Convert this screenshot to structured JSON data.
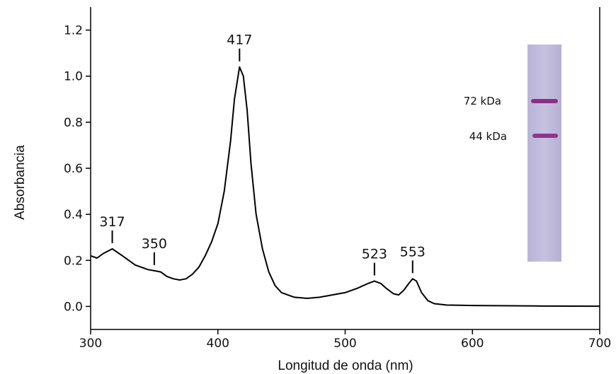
{
  "chart_data": {
    "type": "line",
    "xlabel": "Longitud de onda (nm)",
    "ylabel": "Absorbancia",
    "xlim": [
      300,
      700
    ],
    "ylim": [
      -0.1,
      1.3
    ],
    "xticks": [
      300,
      400,
      500,
      600,
      700
    ],
    "yticks": [
      {
        "value": 0,
        "label": "0.0"
      },
      0.2,
      0.4,
      0.6,
      0.8,
      {
        "value": 1,
        "label": "1.0"
      },
      1.2
    ],
    "series": [
      {
        "color": "#000000",
        "x": [
          300,
          305,
          310,
          317,
          325,
          335,
          345,
          350,
          355,
          360,
          365,
          370,
          375,
          380,
          385,
          390,
          395,
          400,
          405,
          410,
          413,
          417,
          420,
          423,
          426,
          430,
          435,
          440,
          445,
          450,
          460,
          470,
          480,
          490,
          500,
          510,
          518,
          523,
          528,
          532,
          538,
          542,
          546,
          550,
          553,
          556,
          560,
          565,
          570,
          580,
          600,
          650,
          700
        ],
        "values": [
          0.22,
          0.21,
          0.23,
          0.25,
          0.22,
          0.18,
          0.16,
          0.155,
          0.15,
          0.13,
          0.12,
          0.115,
          0.12,
          0.14,
          0.17,
          0.22,
          0.28,
          0.36,
          0.5,
          0.72,
          0.9,
          1.04,
          1.0,
          0.85,
          0.62,
          0.4,
          0.25,
          0.15,
          0.09,
          0.06,
          0.04,
          0.035,
          0.04,
          0.05,
          0.06,
          0.08,
          0.1,
          0.11,
          0.1,
          0.08,
          0.055,
          0.05,
          0.07,
          0.1,
          0.12,
          0.11,
          0.06,
          0.025,
          0.012,
          0.006,
          0.004,
          0.002,
          0.001
        ]
      }
    ],
    "peak_annotations": [
      317,
      350,
      417,
      523,
      553
    ],
    "inset_labels": [
      "72 kDa",
      "44 kDa"
    ]
  }
}
